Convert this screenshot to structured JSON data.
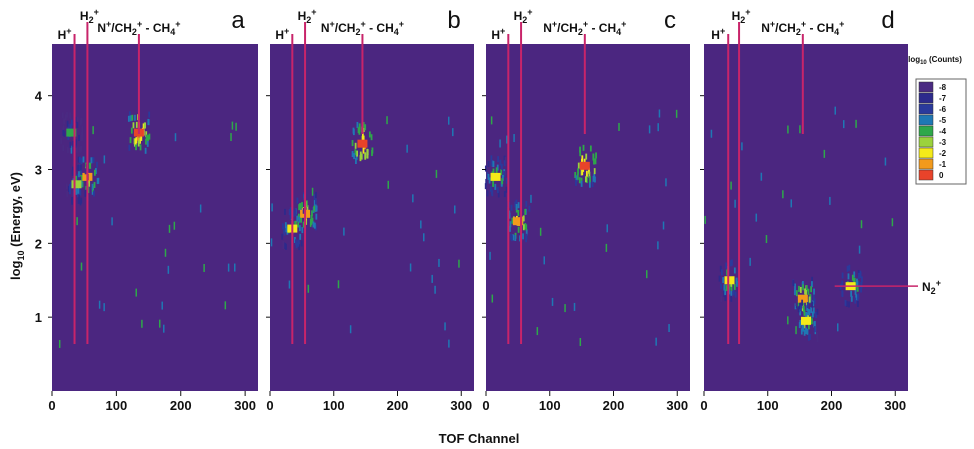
{
  "figure": {
    "x_axis_label": "TOF Channel",
    "y_axis_label_parts": {
      "pre": "log",
      "sub": "10",
      "post": " (Energy, eV)"
    },
    "legend_title_parts": {
      "pre": "log",
      "sub": "10",
      "post": " (Counts)"
    },
    "x_ticks": [
      "0",
      "100",
      "200",
      "300"
    ],
    "y_ticks": [
      "1",
      "2",
      "3",
      "4"
    ],
    "ion_labels": {
      "h_plus": {
        "base": "H",
        "sup": "+"
      },
      "h2_plus": {
        "base": "H",
        "sub": "2",
        "sup": "+"
      },
      "n_ch2_ch4": {
        "p1": "N",
        "s1": "+",
        "p2": "/CH",
        "b2": "2",
        "s2": "+",
        "p3": " - CH",
        "b3": "4",
        "s3": "+"
      },
      "n2_plus": {
        "base": "N",
        "sub": "2",
        "sup": "+"
      }
    },
    "colors": {
      "background": "#4b2680",
      "marker_line": "#c8246a",
      "scale": [
        "#4a2a82",
        "#2d2a8c",
        "#2a3a9c",
        "#1f78b4",
        "#2ea84a",
        "#9bd23c",
        "#f4ea1a",
        "#f29a1c",
        "#e8432a"
      ]
    }
  },
  "chart_data": [
    {
      "type": "heatmap",
      "panel_label": "a",
      "xlabel": "TOF Channel",
      "ylabel": "log10 (Energy, eV)",
      "xlim": [
        0,
        320
      ],
      "ylim": [
        0,
        4.7
      ],
      "x_ticks": [
        0,
        100,
        200,
        300
      ],
      "y_ticks": [
        1,
        2,
        3,
        4
      ],
      "colorbar": {
        "title": "log10 (Counts)",
        "levels": [
          -8,
          -7,
          -6,
          -5,
          -4,
          -3,
          -2,
          -1,
          0
        ]
      },
      "marker_lines": [
        {
          "label": "H+",
          "tof": 35,
          "top_label_row": 2
        },
        {
          "label": "H2+",
          "tof": 55,
          "top_label_row": 1
        },
        {
          "label": "N+/CH2+ - CH4+",
          "tof": 135,
          "top_label_row": 2
        }
      ],
      "hotspots": [
        {
          "tof": 135,
          "log_energy": 3.5,
          "peak_level": 0
        },
        {
          "tof": 55,
          "log_energy": 2.9,
          "peak_level": -1
        },
        {
          "tof": 38,
          "log_energy": 2.8,
          "peak_level": -3
        },
        {
          "tof": 30,
          "log_energy": 3.5,
          "peak_level": -4
        }
      ]
    },
    {
      "type": "heatmap",
      "panel_label": "b",
      "xlabel": "TOF Channel",
      "ylabel": "log10 (Energy, eV)",
      "xlim": [
        0,
        320
      ],
      "ylim": [
        0,
        4.7
      ],
      "x_ticks": [
        0,
        100,
        200,
        300
      ],
      "y_ticks": [
        1,
        2,
        3,
        4
      ],
      "colorbar": {
        "title": "log10 (Counts)",
        "levels": [
          -8,
          -7,
          -6,
          -5,
          -4,
          -3,
          -2,
          -1,
          0
        ]
      },
      "marker_lines": [
        {
          "label": "H+",
          "tof": 35,
          "top_label_row": 2
        },
        {
          "label": "H2+",
          "tof": 55,
          "top_label_row": 1
        },
        {
          "label": "N+/CH2+ - CH4+",
          "tof": 145,
          "top_label_row": 2
        }
      ],
      "hotspots": [
        {
          "tof": 145,
          "log_energy": 3.35,
          "peak_level": 0
        },
        {
          "tof": 55,
          "log_energy": 2.4,
          "peak_level": -1
        },
        {
          "tof": 35,
          "log_energy": 2.2,
          "peak_level": -2
        }
      ]
    },
    {
      "type": "heatmap",
      "panel_label": "c",
      "xlabel": "TOF Channel",
      "ylabel": "log10 (Energy, eV)",
      "xlim": [
        0,
        320
      ],
      "ylim": [
        0,
        4.7
      ],
      "x_ticks": [
        0,
        100,
        200,
        300
      ],
      "y_ticks": [
        1,
        2,
        3,
        4
      ],
      "colorbar": {
        "title": "log10 (Counts)",
        "levels": [
          -8,
          -7,
          -6,
          -5,
          -4,
          -3,
          -2,
          -1,
          0
        ]
      },
      "marker_lines": [
        {
          "label": "H+",
          "tof": 35,
          "top_label_row": 2
        },
        {
          "label": "H2+",
          "tof": 55,
          "top_label_row": 1
        },
        {
          "label": "N+/CH2+ - CH4+",
          "tof": 155,
          "top_label_row": 2
        }
      ],
      "hotspots": [
        {
          "tof": 155,
          "log_energy": 3.05,
          "peak_level": 0
        },
        {
          "tof": 50,
          "log_energy": 2.3,
          "peak_level": -1
        },
        {
          "tof": 15,
          "log_energy": 2.9,
          "peak_level": -2
        }
      ]
    },
    {
      "type": "heatmap",
      "panel_label": "d",
      "xlabel": "TOF Channel",
      "ylabel": "log10 (Energy, eV)",
      "xlim": [
        0,
        320
      ],
      "ylim": [
        0,
        4.7
      ],
      "x_ticks": [
        0,
        100,
        200,
        300
      ],
      "y_ticks": [
        1,
        2,
        3,
        4
      ],
      "colorbar": {
        "title": "log10 (Counts)",
        "levels": [
          -8,
          -7,
          -6,
          -5,
          -4,
          -3,
          -2,
          -1,
          0
        ]
      },
      "marker_lines": [
        {
          "label": "H+",
          "tof": 38,
          "top_label_row": 2
        },
        {
          "label": "H2+",
          "tof": 55,
          "top_label_row": 1
        },
        {
          "label": "N+/CH2+ - CH4+",
          "tof": 155,
          "top_label_row": 2
        }
      ],
      "side_label": {
        "label": "N2+",
        "log_energy": 1.42
      },
      "hotspots": [
        {
          "tof": 155,
          "log_energy": 1.25,
          "peak_level": -1
        },
        {
          "tof": 40,
          "log_energy": 1.5,
          "peak_level": -2
        },
        {
          "tof": 230,
          "log_energy": 1.42,
          "peak_level": -2
        },
        {
          "tof": 160,
          "log_energy": 0.95,
          "peak_level": -2
        }
      ]
    }
  ]
}
